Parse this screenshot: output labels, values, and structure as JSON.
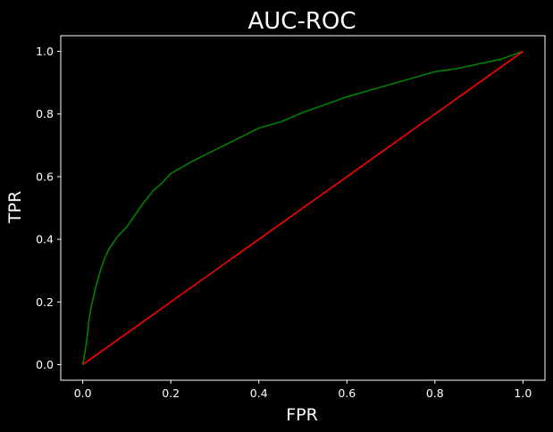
{
  "chart_data": {
    "type": "line",
    "title": "AUC-ROC",
    "xlabel": "FPR",
    "ylabel": "TPR",
    "xlim": [
      -0.05,
      1.05
    ],
    "ylim": [
      -0.05,
      1.05
    ],
    "xticks": [
      0.0,
      0.2,
      0.4,
      0.6,
      0.8,
      1.0
    ],
    "yticks": [
      0.0,
      0.2,
      0.4,
      0.6,
      0.8,
      1.0
    ],
    "xtick_labels": [
      "0.0",
      "0.2",
      "0.4",
      "0.6",
      "0.8",
      "1.0"
    ],
    "ytick_labels": [
      "0.0",
      "0.2",
      "0.4",
      "0.6",
      "0.8",
      "1.0"
    ],
    "grid": false,
    "background": "#000000",
    "series": [
      {
        "color": "#008000",
        "x": [
          0,
          0.005,
          0.01,
          0.015,
          0.02,
          0.03,
          0.04,
          0.05,
          0.06,
          0.07,
          0.08,
          0.1,
          0.12,
          0.14,
          0.16,
          0.18,
          0.2,
          0.25,
          0.3,
          0.35,
          0.4,
          0.45,
          0.5,
          0.55,
          0.6,
          0.65,
          0.7,
          0.75,
          0.8,
          0.85,
          0.9,
          0.95,
          1.0
        ],
        "y": [
          0,
          0.04,
          0.09,
          0.15,
          0.19,
          0.25,
          0.3,
          0.34,
          0.37,
          0.39,
          0.41,
          0.44,
          0.48,
          0.52,
          0.555,
          0.58,
          0.61,
          0.65,
          0.685,
          0.72,
          0.755,
          0.775,
          0.805,
          0.83,
          0.855,
          0.875,
          0.895,
          0.915,
          0.935,
          0.945,
          0.96,
          0.975,
          1.0
        ]
      },
      {
        "color": "#ff0000",
        "x": [
          0,
          1
        ],
        "y": [
          0,
          1
        ]
      }
    ]
  }
}
